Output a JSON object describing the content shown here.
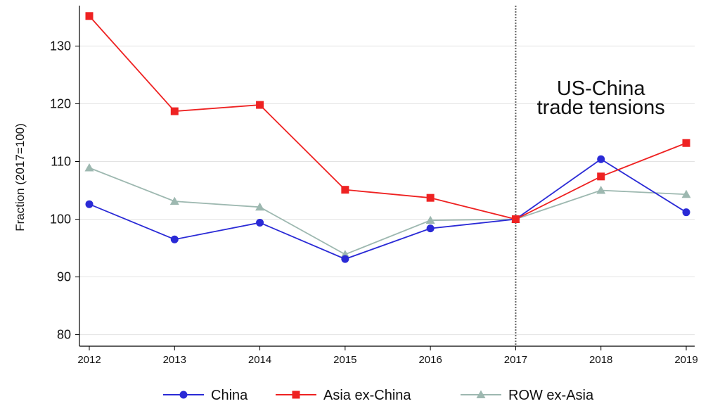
{
  "chart_data": {
    "type": "line",
    "ylabel": "Fraction (2017=100)",
    "xlabel": "",
    "x": [
      "2012",
      "2013",
      "2014",
      "2015",
      "2016",
      "2017",
      "2018",
      "2019"
    ],
    "ylim": [
      78,
      137
    ],
    "yticks": [
      80,
      90,
      100,
      110,
      120,
      130
    ],
    "grid": true,
    "legend_position": "bottom",
    "vline": {
      "x": "2017",
      "style": "dotted"
    },
    "annotation": {
      "lines": [
        "US-China",
        "trade tensions"
      ],
      "x": "2018"
    },
    "series": [
      {
        "name": "China",
        "color": "#2a2ad6",
        "marker": "circle",
        "values": [
          102.6,
          96.5,
          99.4,
          93.1,
          98.4,
          100,
          110.4,
          101.2
        ]
      },
      {
        "name": "Asia ex-China",
        "color": "#ee2222",
        "marker": "square",
        "values": [
          135.2,
          118.7,
          119.8,
          105.1,
          103.7,
          100,
          107.4,
          113.2
        ]
      },
      {
        "name": "ROW ex-Asia",
        "color": "#9db8b0",
        "marker": "triangle",
        "values": [
          108.9,
          103.1,
          102.1,
          93.9,
          99.8,
          100,
          105.0,
          104.3
        ]
      }
    ]
  }
}
